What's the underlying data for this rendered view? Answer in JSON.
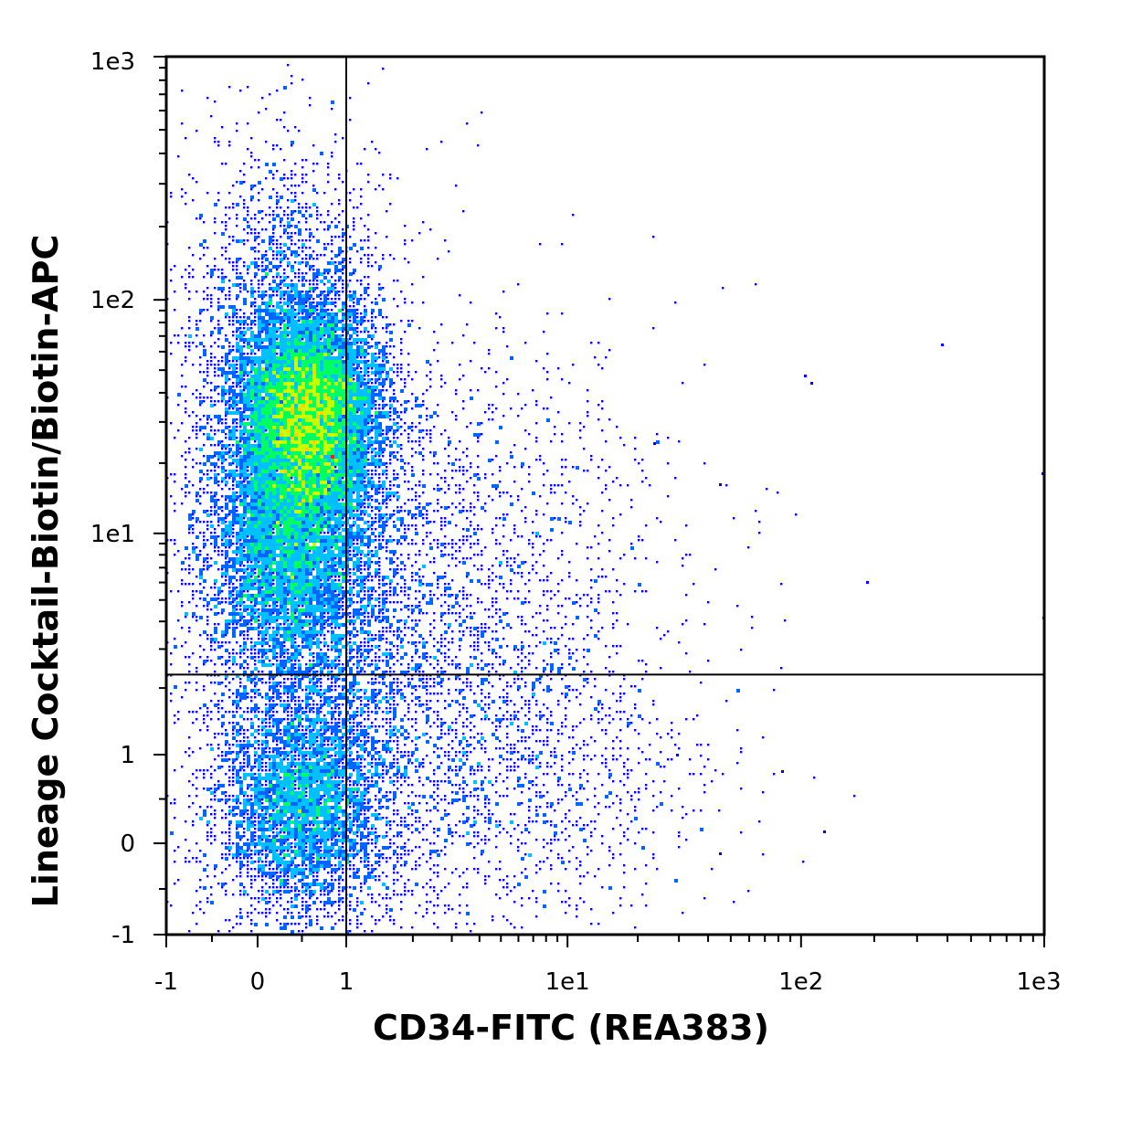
{
  "chart_data": {
    "type": "scatter",
    "title": "",
    "xlabel": "CD34-FITC (REA383)",
    "ylabel": "Lineage Cocktail-Biotin/Biotin-APC",
    "x_scale": "biexponential",
    "y_scale": "biexponential",
    "xlim": [
      -1,
      1000
    ],
    "ylim": [
      -1,
      1000
    ],
    "x_ticks": [
      "-1",
      "0",
      "1",
      "1e1",
      "1e2",
      "1e3"
    ],
    "y_ticks": [
      "-1",
      "0",
      "1",
      "1e1",
      "1e2",
      "1e3"
    ],
    "gate_lines": {
      "x": 1,
      "y": 2.3
    },
    "density_colors": [
      "#0000ff",
      "#0066ff",
      "#00c0ff",
      "#00ff60",
      "#c8ff00",
      "#ffd000",
      "#ff2000"
    ],
    "populations": [
      {
        "center": [
          0.6,
          30
        ],
        "spread_x": 0.14,
        "spread_y": 0.11,
        "density": "highest"
      },
      {
        "center": [
          0.45,
          9
        ],
        "spread_x": 0.13,
        "spread_y": 0.14,
        "density": "medium"
      },
      {
        "center": [
          0.6,
          0.2
        ],
        "spread_x": 0.11,
        "spread_y": 0.09,
        "density": "low"
      },
      {
        "center": [
          5,
          1
        ],
        "spread_x": 0.22,
        "spread_y": 0.14,
        "density": "sparse"
      }
    ]
  }
}
